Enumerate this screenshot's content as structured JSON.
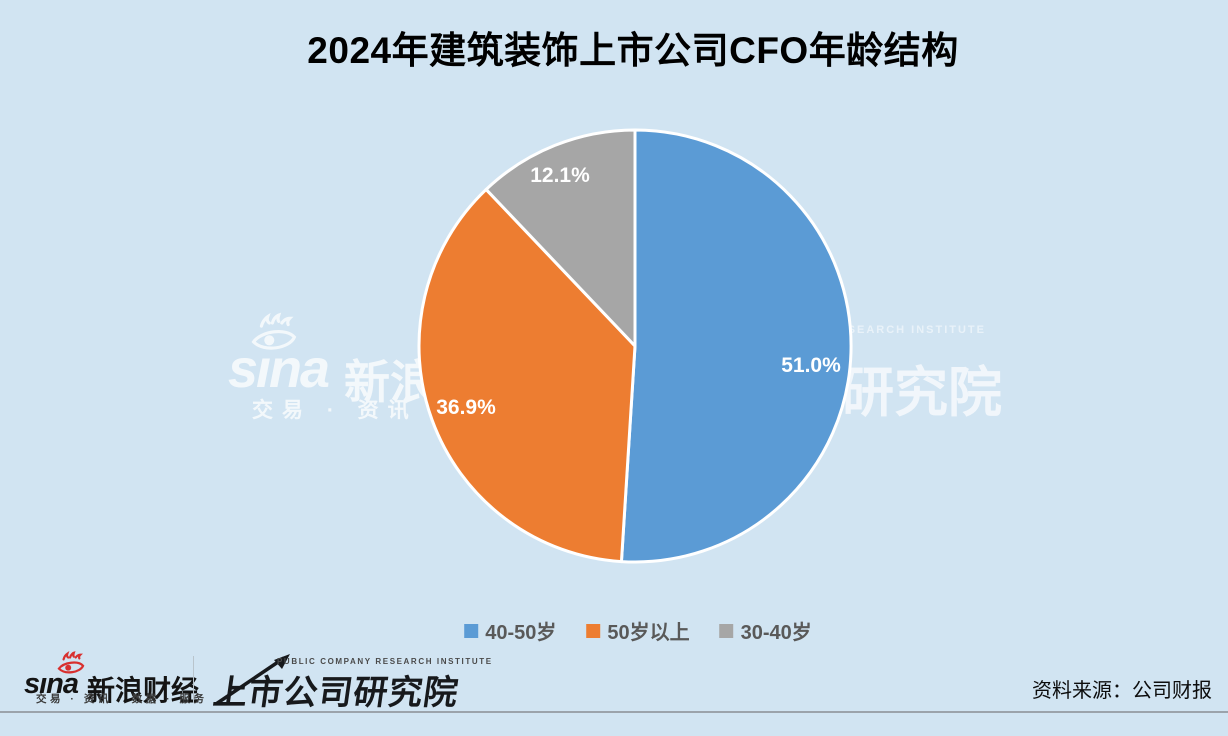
{
  "title": "2024年建筑装饰上市公司CFO年龄结构",
  "chart_data": {
    "type": "pie",
    "title": "2024年建筑装饰上市公司CFO年龄结构",
    "start_angle": "top",
    "direction": "clockwise",
    "legend_position": "bottom",
    "slices": [
      {
        "name": "40-50岁",
        "value": 51.0,
        "pct_label": "51.0%",
        "color": "#5b9bd5"
      },
      {
        "name": "50岁以上",
        "value": 36.9,
        "pct_label": "36.9%",
        "color": "#ed7d31"
      },
      {
        "name": "30-40岁",
        "value": 12.1,
        "pct_label": "12.1%",
        "color": "#a6a6a6"
      }
    ]
  },
  "watermark": {
    "sina_text": "sına",
    "brand_text": "新浪财经",
    "tagline": "交易 · 资讯 · 数据 · 服务",
    "institute_caps": "PUBLIC COMPANY RESEARCH INSTITUTE",
    "institute_text": "上市公司研究院"
  },
  "footer": {
    "sina_logo_text": "sına",
    "sina_brand": "新浪财经",
    "sina_tagline": "交易 · 资讯 · 数据 · 服务",
    "institute_caps": "PUBLIC COMPANY RESEARCH INSTITUTE",
    "institute_name": "上市公司研究院",
    "source": "资料来源：公司财报"
  },
  "colors": {
    "background": "#d1e4f2",
    "slice_blue": "#5b9bd5",
    "slice_orange": "#ed7d31",
    "slice_gray": "#a6a6a6",
    "legend_text": "#595959",
    "sina_red": "#d8302f",
    "slice_border": "#ffffff"
  }
}
